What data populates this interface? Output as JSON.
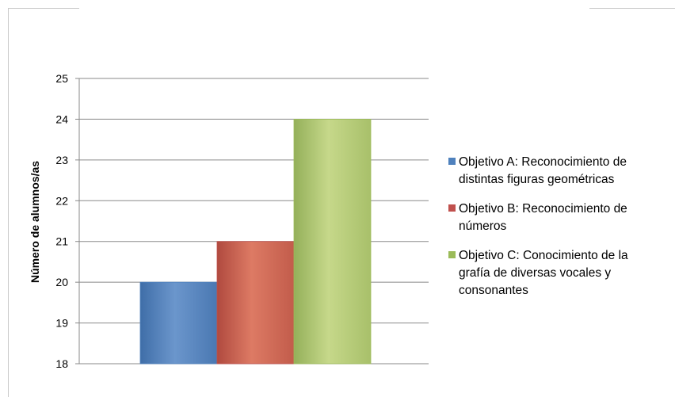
{
  "chart_data": {
    "type": "bar",
    "title": "",
    "xlabel": "",
    "ylabel": "Número de alumnos/as",
    "ylim": [
      18,
      25
    ],
    "yticks": [
      18,
      19,
      20,
      21,
      22,
      23,
      24,
      25
    ],
    "grid": true,
    "legend_position": "right",
    "series": [
      {
        "name": "Objetivo A: Reconocimiento de distintas figuras geométricas",
        "value": 20,
        "color": "#4f81bd"
      },
      {
        "name": "Objetivo B: Reconocimiento de números",
        "value": 21,
        "color": "#c0504d"
      },
      {
        "name": "Objetivo C: Conocimiento de la grafía de diversas vocales y consonantes",
        "value": 24,
        "color": "#9bbb59"
      }
    ]
  },
  "legend": {
    "items": [
      {
        "line1": "Objetivo A: Reconocimiento de",
        "line2": "distintas figuras geométricas"
      },
      {
        "line1": "Objetivo B: Reconocimiento de",
        "line2": "números"
      },
      {
        "line1": "Objetivo C: Conocimiento de la",
        "line2": "grafía de diversas vocales y",
        "line3": "consonantes"
      }
    ]
  }
}
